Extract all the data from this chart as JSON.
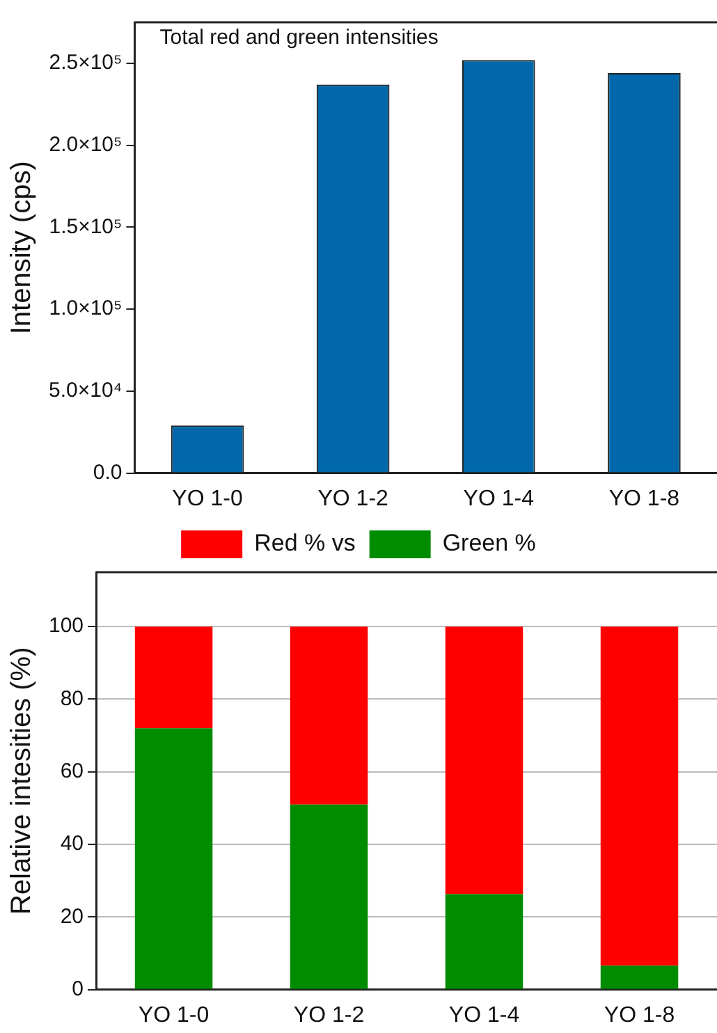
{
  "chart_data": [
    {
      "type": "bar",
      "title": "Total red and green intensities",
      "ylabel": "Intensity (cps)",
      "categories": [
        "YO 1-0",
        "YO 1-2",
        "YO 1-4",
        "YO 1-8"
      ],
      "values": [
        29000,
        237000,
        252000,
        244000
      ],
      "color": "#0068aa",
      "ylim": [
        0,
        275000
      ],
      "yticks": [
        {
          "value": 0,
          "label": "0.0"
        },
        {
          "value": 50000,
          "label": "5.0×10⁴"
        },
        {
          "value": 100000,
          "label": "1.0×10⁵"
        },
        {
          "value": 150000,
          "label": "1.5×10⁵"
        },
        {
          "value": 200000,
          "label": "2.0×10⁵"
        },
        {
          "value": 250000,
          "label": "2.5×10⁵"
        }
      ],
      "grid": false,
      "legend": false
    },
    {
      "type": "bar",
      "ylabel": "Relative intesities (%)",
      "categories": [
        "YO 1-0",
        "YO 1-2",
        "YO 1-4",
        "YO 1-8"
      ],
      "stacked": true,
      "series": [
        {
          "name": "Green %",
          "color": "#008c00",
          "values": [
            72,
            51,
            26.3,
            6.6
          ]
        },
        {
          "name": "Red % vs",
          "color": "#ff0000",
          "values": [
            28,
            49,
            73.7,
            93.4
          ]
        }
      ],
      "ylim": [
        0,
        115
      ],
      "yticks": [
        0,
        20,
        40,
        60,
        80,
        100
      ],
      "grid": "y",
      "legend": "top"
    }
  ]
}
